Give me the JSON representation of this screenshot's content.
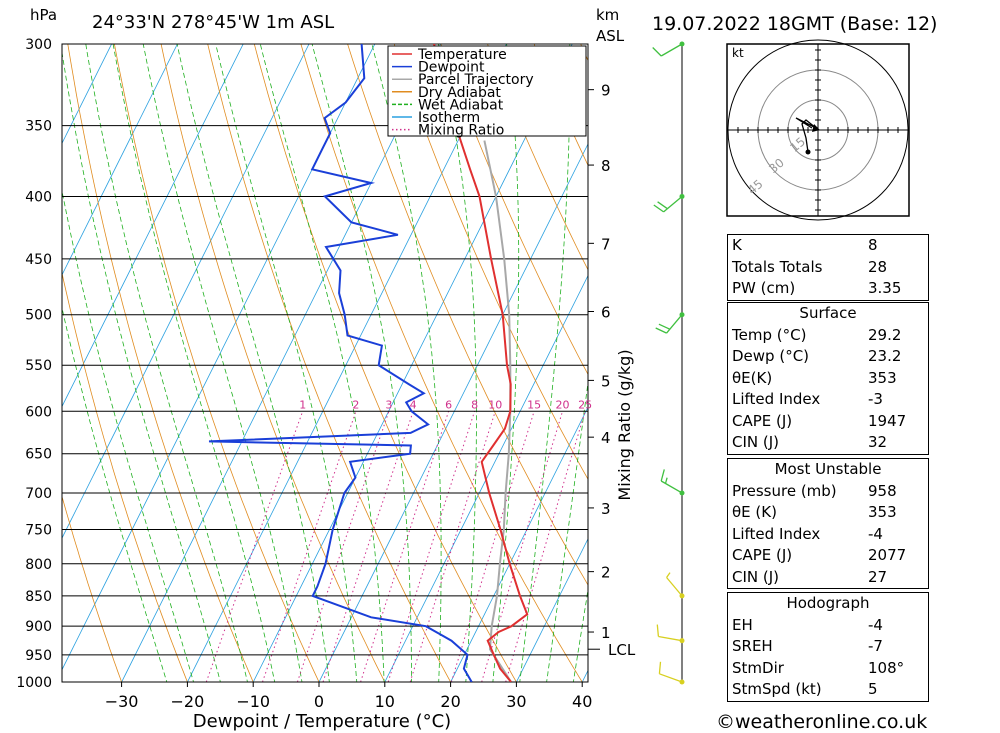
{
  "header": {
    "units_left": "hPa",
    "location": "24°33'N  278°45'W  1m  ASL",
    "units_km": "km",
    "units_asl": "ASL",
    "datetime": "19.07.2022  18GMT  (Base: 12)"
  },
  "chart_data": {
    "type": "skew-t",
    "xlabel": "Dewpoint / Temperature (°C)",
    "ylabel_right": "Mixing Ratio (g/kg)",
    "x_ticks": [
      -30,
      -20,
      -10,
      0,
      10,
      20,
      30,
      40
    ],
    "x_range": [
      -40,
      40
    ],
    "pressure_levels": [
      300,
      350,
      400,
      450,
      500,
      550,
      600,
      650,
      700,
      750,
      800,
      850,
      900,
      950,
      1000
    ],
    "km_ticks": [
      {
        "label": "9",
        "p": 327
      },
      {
        "label": "8",
        "p": 377
      },
      {
        "label": "7",
        "p": 437
      },
      {
        "label": "6",
        "p": 497
      },
      {
        "label": "5",
        "p": 566
      },
      {
        "label": "4",
        "p": 630
      },
      {
        "label": "3",
        "p": 720
      },
      {
        "label": "2",
        "p": 812
      },
      {
        "label": "1",
        "p": 910
      }
    ],
    "lcl_label": "LCL",
    "lcl_p": 940,
    "mixing_ratio_labels": [
      "1",
      "2",
      "3",
      "4",
      "6",
      "8",
      "10",
      "15",
      "20",
      "25"
    ],
    "mixing_ratio_values": [
      1,
      2,
      3,
      4,
      6,
      8,
      10,
      15,
      20,
      25
    ],
    "legend": [
      {
        "name": "Temperature",
        "color": "#e03030",
        "style": "solid"
      },
      {
        "name": "Dewpoint",
        "color": "#1a3fd8",
        "style": "solid"
      },
      {
        "name": "Parcel Trajectory",
        "color": "#a8a8a8",
        "style": "solid"
      },
      {
        "name": "Dry Adiabat",
        "color": "#e08c20",
        "style": "solid"
      },
      {
        "name": "Wet Adiabat",
        "color": "#20b020",
        "style": "dashed"
      },
      {
        "name": "Isotherm",
        "color": "#2aa0e0",
        "style": "solid"
      },
      {
        "name": "Mixing Ratio",
        "color": "#d0308c",
        "style": "dotted"
      }
    ],
    "temperature": [
      [
        1000,
        29.2
      ],
      [
        975,
        26.5
      ],
      [
        950,
        24.5
      ],
      [
        925,
        22.5
      ],
      [
        910,
        23.5
      ],
      [
        900,
        25.0
      ],
      [
        880,
        26.5
      ],
      [
        850,
        24.0
      ],
      [
        800,
        20.0
      ],
      [
        750,
        16.0
      ],
      [
        700,
        11.5
      ],
      [
        660,
        8.0
      ],
      [
        640,
        8.5
      ],
      [
        620,
        9.0
      ],
      [
        600,
        8.5
      ],
      [
        570,
        6.5
      ],
      [
        550,
        4.5
      ],
      [
        500,
        0.0
      ],
      [
        450,
        -6.0
      ],
      [
        400,
        -12.5
      ],
      [
        380,
        -16.0
      ],
      [
        350,
        -21.5
      ],
      [
        320,
        -27.0
      ],
      [
        300,
        -31.0
      ]
    ],
    "dewpoint": [
      [
        1000,
        23.2
      ],
      [
        975,
        21.0
      ],
      [
        950,
        20.5
      ],
      [
        925,
        17.0
      ],
      [
        900,
        12.0
      ],
      [
        885,
        3.0
      ],
      [
        850,
        -7.5
      ],
      [
        835,
        -7.5
      ],
      [
        800,
        -8.0
      ],
      [
        750,
        -9.5
      ],
      [
        700,
        -10.5
      ],
      [
        680,
        -10.0
      ],
      [
        660,
        -12.0
      ],
      [
        650,
        -3.5
      ],
      [
        640,
        -4.0
      ],
      [
        635,
        -35.0
      ],
      [
        625,
        -5.0
      ],
      [
        615,
        -3.0
      ],
      [
        600,
        -6.5
      ],
      [
        590,
        -8.0
      ],
      [
        580,
        -6.0
      ],
      [
        570,
        -9.0
      ],
      [
        550,
        -15.0
      ],
      [
        530,
        -16.0
      ],
      [
        520,
        -22.0
      ],
      [
        500,
        -24.0
      ],
      [
        480,
        -26.5
      ],
      [
        460,
        -28.0
      ],
      [
        440,
        -32.0
      ],
      [
        430,
        -22.0
      ],
      [
        420,
        -30.0
      ],
      [
        400,
        -36.0
      ],
      [
        390,
        -30.0
      ],
      [
        380,
        -40.0
      ],
      [
        365,
        -40.0
      ],
      [
        355,
        -40.0
      ],
      [
        345,
        -42.0
      ],
      [
        335,
        -40.0
      ],
      [
        320,
        -39.0
      ],
      [
        300,
        -42.0
      ]
    ],
    "parcel": [
      [
        1000,
        29.2
      ],
      [
        940,
        23.5
      ],
      [
        900,
        22.0
      ],
      [
        850,
        20.5
      ],
      [
        800,
        18.5
      ],
      [
        750,
        16.5
      ],
      [
        700,
        14.0
      ],
      [
        650,
        11.5
      ],
      [
        600,
        8.5
      ],
      [
        550,
        5.0
      ],
      [
        500,
        1.0
      ],
      [
        450,
        -4.0
      ],
      [
        400,
        -10.0
      ],
      [
        360,
        -16.0
      ]
    ],
    "wind_barbs": [
      {
        "p": 300,
        "dir": 240,
        "spd": 10
      },
      {
        "p": 400,
        "dir": 230,
        "spd": 20
      },
      {
        "p": 500,
        "dir": 220,
        "spd": 20
      },
      {
        "p": 700,
        "dir": 300,
        "spd": 15
      },
      {
        "p": 850,
        "dir": 320,
        "spd": 5
      },
      {
        "p": 925,
        "dir": 280,
        "spd": 10
      },
      {
        "p": 1000,
        "dir": 290,
        "spd": 10
      }
    ]
  },
  "hodograph": {
    "unit": "kt",
    "ring_labels": [
      "15",
      "30",
      "45"
    ]
  },
  "indices": {
    "rows": [
      {
        "label": "K",
        "value": "8"
      },
      {
        "label": "Totals Totals",
        "value": "28"
      },
      {
        "label": "PW (cm)",
        "value": "3.35"
      }
    ]
  },
  "surface": {
    "title": "Surface",
    "rows": [
      {
        "label": "Temp (°C)",
        "value": "29.2"
      },
      {
        "label": "Dewp (°C)",
        "value": "23.2"
      },
      {
        "label": "θE(K)",
        "value": "353"
      },
      {
        "label": "Lifted Index",
        "value": "-3"
      },
      {
        "label": "CAPE (J)",
        "value": "1947"
      },
      {
        "label": "CIN (J)",
        "value": "32"
      }
    ]
  },
  "most_unstable": {
    "title": "Most Unstable",
    "rows": [
      {
        "label": "Pressure (mb)",
        "value": "958"
      },
      {
        "label": "θE (K)",
        "value": "353"
      },
      {
        "label": "Lifted Index",
        "value": "-4"
      },
      {
        "label": "CAPE (J)",
        "value": "2077"
      },
      {
        "label": "CIN (J)",
        "value": "27"
      }
    ]
  },
  "hodograph_table": {
    "title": "Hodograph",
    "rows": [
      {
        "label": "EH",
        "value": "-4"
      },
      {
        "label": "SREH",
        "value": "-7"
      },
      {
        "label": "StmDir",
        "value": "108°"
      },
      {
        "label": "StmSpd (kt)",
        "value": "5"
      }
    ]
  },
  "footer": {
    "copyright": "©weatheronline.co.uk"
  }
}
